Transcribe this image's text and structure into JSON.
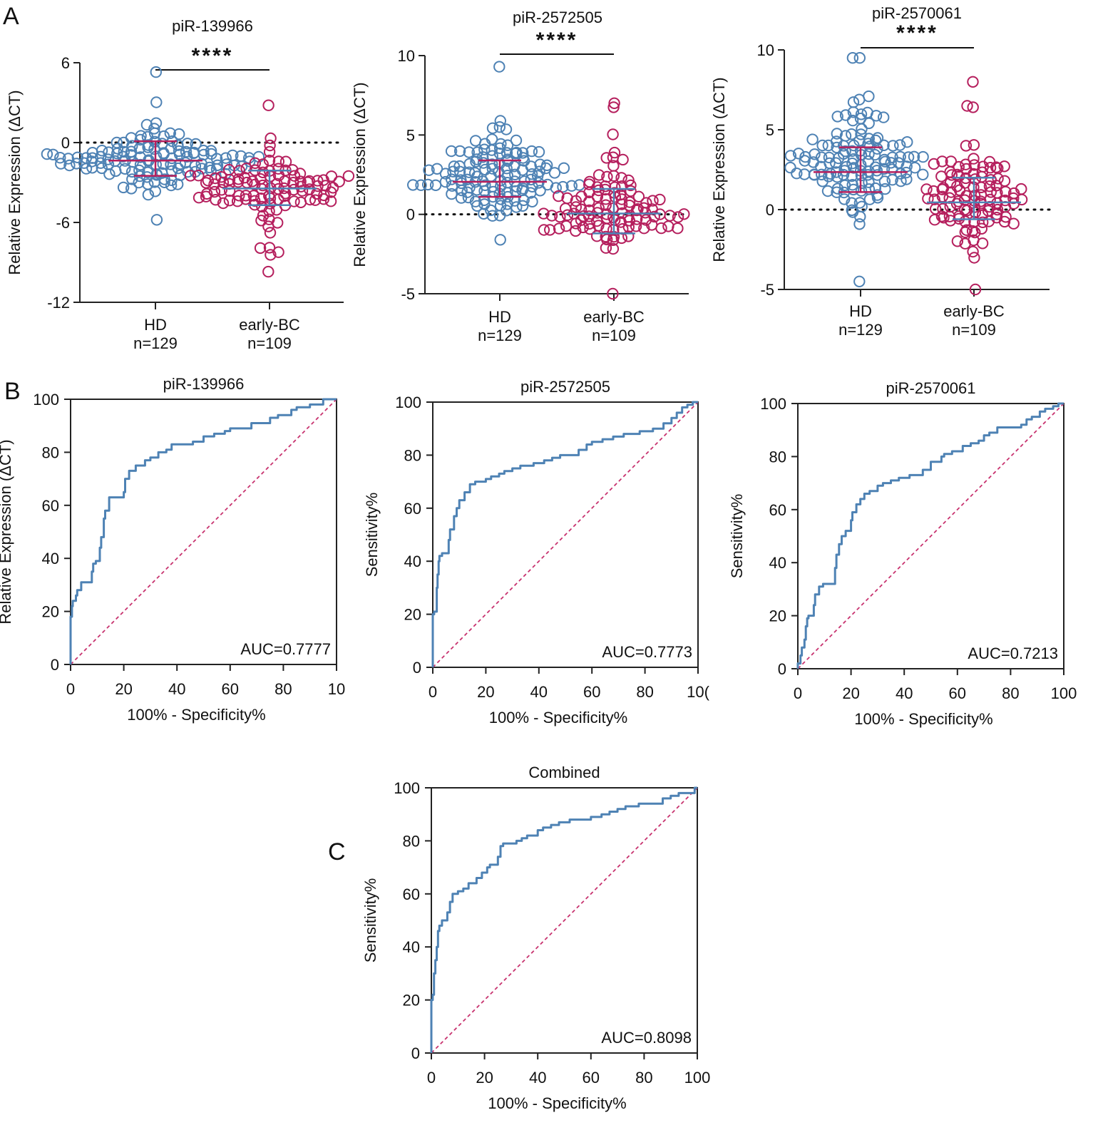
{
  "panel_labels": [
    "A",
    "B",
    "C"
  ],
  "chart_data": [
    {
      "type": "scatter",
      "title": "piR-139966",
      "ylabel": "Relative Expression (ΔCT)",
      "ylim": [
        -12,
        6
      ],
      "yticks": [
        6,
        0,
        -6,
        -12
      ],
      "reference_line": 0,
      "significance": "****",
      "groups": [
        {
          "name": "HD",
          "n_label": "n=129",
          "n": 129,
          "mean": -1.35,
          "sd": 1.2,
          "center": -1.3,
          "min": -5.8,
          "max": 5.3,
          "skew": 0,
          "color": "#4e82b4",
          "bar_color": "#b51f5d",
          "mean_line": -1.35,
          "err_low": -2.5,
          "err_high": 0.1
        },
        {
          "name": "early-BC",
          "n_label": "n=109",
          "n": 109,
          "mean": -3.4,
          "sd": 1.1,
          "center": -3.3,
          "min": -9.7,
          "max": 2.8,
          "skew": -1,
          "color": "#b51f5d",
          "bar_color": "#4e82b4",
          "mean_line": -3.45,
          "err_low": -4.7,
          "err_high": -2.1
        }
      ]
    },
    {
      "type": "scatter",
      "title": "piR-2572505",
      "ylabel": "Relative Expression (ΔCT)",
      "ylim": [
        -5,
        10
      ],
      "yticks": [
        10,
        5,
        0,
        -5
      ],
      "reference_line": 0,
      "significance": "****",
      "groups": [
        {
          "name": "HD",
          "n_label": "n=129",
          "n": 129,
          "mean": 2.1,
          "sd": 1.1,
          "center": 2.1,
          "min": -1.6,
          "max": 9.3,
          "skew": 1,
          "color": "#4e82b4",
          "bar_color": "#b51f5d",
          "mean_line": 2.05,
          "err_low": 1.1,
          "err_high": 3.4
        },
        {
          "name": "early-BC",
          "n_label": "n=109",
          "n": 109,
          "mean": 0.1,
          "sd": 1.3,
          "center": 0.1,
          "min": -5.0,
          "max": 7.0,
          "skew": 1,
          "color": "#b51f5d",
          "bar_color": "#4e82b4",
          "mean_line": 0.05,
          "err_low": -1.2,
          "err_high": 1.6
        }
      ]
    },
    {
      "type": "scatter",
      "title": "piR-2570061",
      "ylabel": "Relative Expression (ΔCT)",
      "ylim": [
        -5,
        10
      ],
      "yticks": [
        10,
        5,
        0,
        -5
      ],
      "reference_line": 0,
      "significance": "****",
      "groups": [
        {
          "name": "HD",
          "n_label": "n=129",
          "n": 129,
          "mean": 2.4,
          "sd": 1.5,
          "center": 2.3,
          "min": -4.5,
          "max": 9.5,
          "skew": 1,
          "color": "#4e82b4",
          "bar_color": "#b51f5d",
          "mean_line": 2.35,
          "err_low": 1.1,
          "err_high": 3.9
        },
        {
          "name": "early-BC",
          "n_label": "n=109",
          "n": 109,
          "mean": 0.5,
          "sd": 1.4,
          "center": 0.4,
          "min": -5.0,
          "max": 8.0,
          "skew": 1,
          "color": "#b51f5d",
          "bar_color": "#4e82b4",
          "mean_line": 0.45,
          "err_low": -0.6,
          "err_high": 2.0
        }
      ]
    },
    {
      "type": "line",
      "subtype": "roc",
      "title": "piR-139966",
      "xlabel": "100% - Specificity%",
      "ylabel": "Relative Expression (ΔCT)",
      "auc_label": "AUC=0.7777",
      "xlim": [
        0,
        100
      ],
      "ylim": [
        0,
        100
      ],
      "xticks": [
        "0",
        "20",
        "40",
        "60",
        "80",
        "10"
      ],
      "yticks": [
        0,
        20,
        40,
        60,
        80,
        100
      ],
      "curve": [
        [
          0,
          0
        ],
        [
          0,
          13
        ],
        [
          0.5,
          18
        ],
        [
          0.8,
          22
        ],
        [
          2,
          24
        ],
        [
          2.5,
          26
        ],
        [
          4,
          28
        ],
        [
          4.5,
          31
        ],
        [
          8,
          31
        ],
        [
          8.5,
          35
        ],
        [
          9.5,
          38
        ],
        [
          11,
          39
        ],
        [
          11.5,
          44
        ],
        [
          12.5,
          48
        ],
        [
          13,
          55
        ],
        [
          14.5,
          58
        ],
        [
          15,
          63
        ],
        [
          20,
          63
        ],
        [
          20.5,
          65
        ],
        [
          22,
          70
        ],
        [
          24.5,
          73
        ],
        [
          25,
          75
        ],
        [
          28,
          75
        ],
        [
          30,
          77
        ],
        [
          33,
          78
        ],
        [
          36,
          80
        ],
        [
          38,
          81
        ],
        [
          40,
          83
        ],
        [
          46,
          83
        ],
        [
          50,
          84
        ],
        [
          54,
          86
        ],
        [
          58,
          87
        ],
        [
          60,
          88
        ],
        [
          65,
          89
        ],
        [
          68,
          89
        ],
        [
          70,
          91
        ],
        [
          75,
          91
        ],
        [
          78,
          93
        ],
        [
          83,
          94
        ],
        [
          85,
          96
        ],
        [
          90,
          97
        ],
        [
          95,
          98
        ],
        [
          98,
          100
        ],
        [
          100,
          100
        ]
      ],
      "curve_color": "#4e82b4",
      "diagonal_color": "#c8336f"
    },
    {
      "type": "line",
      "subtype": "roc",
      "title": "piR-2572505",
      "xlabel": "100% - Specificity%",
      "ylabel": "Sensitivity%",
      "auc_label": "AUC=0.7773",
      "xlim": [
        0,
        100
      ],
      "ylim": [
        0,
        100
      ],
      "xticks": [
        "0",
        "20",
        "40",
        "60",
        "80",
        "10("
      ],
      "yticks": [
        0,
        20,
        40,
        60,
        80,
        100
      ],
      "curve": [
        [
          0,
          0
        ],
        [
          0,
          16
        ],
        [
          0.5,
          20
        ],
        [
          1.5,
          21
        ],
        [
          1.8,
          30
        ],
        [
          2.2,
          35
        ],
        [
          2.5,
          40
        ],
        [
          3.5,
          42
        ],
        [
          6,
          43
        ],
        [
          6.5,
          48
        ],
        [
          8,
          52
        ],
        [
          9,
          57
        ],
        [
          10,
          60
        ],
        [
          12,
          63
        ],
        [
          14,
          66
        ],
        [
          16,
          69
        ],
        [
          20,
          70
        ],
        [
          22,
          71
        ],
        [
          25,
          72
        ],
        [
          27,
          73
        ],
        [
          30,
          74
        ],
        [
          33,
          75
        ],
        [
          38,
          76
        ],
        [
          42,
          77
        ],
        [
          45,
          78
        ],
        [
          48,
          79
        ],
        [
          55,
          80
        ],
        [
          58,
          82
        ],
        [
          60,
          84
        ],
        [
          64,
          85
        ],
        [
          68,
          86
        ],
        [
          72,
          87
        ],
        [
          78,
          88
        ],
        [
          83,
          89
        ],
        [
          87,
          90
        ],
        [
          90,
          92
        ],
        [
          92,
          94
        ],
        [
          94,
          96
        ],
        [
          96,
          98
        ],
        [
          98,
          99
        ],
        [
          100,
          100
        ]
      ],
      "curve_color": "#4e82b4",
      "diagonal_color": "#c8336f"
    },
    {
      "type": "line",
      "subtype": "roc",
      "title": "piR-2570061",
      "xlabel": "100% - Specificity%",
      "ylabel": "Sensitivity%",
      "auc_label": "AUC=0.7213",
      "xlim": [
        0,
        100
      ],
      "ylim": [
        0,
        100
      ],
      "xticks": [
        "0",
        "20",
        "40",
        "60",
        "80",
        "100"
      ],
      "yticks": [
        0,
        20,
        40,
        60,
        80,
        100
      ],
      "curve": [
        [
          0,
          0
        ],
        [
          1,
          2
        ],
        [
          1.5,
          5
        ],
        [
          2.5,
          8
        ],
        [
          3,
          11
        ],
        [
          3.5,
          16
        ],
        [
          4,
          19
        ],
        [
          6,
          20
        ],
        [
          6.5,
          24
        ],
        [
          8,
          28
        ],
        [
          9.5,
          31
        ],
        [
          12,
          32
        ],
        [
          14,
          32
        ],
        [
          14.5,
          38
        ],
        [
          15.5,
          43
        ],
        [
          16.5,
          47
        ],
        [
          18,
          50
        ],
        [
          20,
          52
        ],
        [
          20.5,
          56
        ],
        [
          22,
          59
        ],
        [
          23.5,
          62
        ],
        [
          25,
          64
        ],
        [
          27,
          66
        ],
        [
          30,
          67
        ],
        [
          32,
          69
        ],
        [
          35,
          70
        ],
        [
          38,
          71
        ],
        [
          42,
          72
        ],
        [
          47,
          73
        ],
        [
          50,
          75
        ],
        [
          54,
          78
        ],
        [
          55,
          80
        ],
        [
          58,
          81
        ],
        [
          62,
          82
        ],
        [
          65,
          84
        ],
        [
          68,
          85
        ],
        [
          70,
          86
        ],
        [
          72,
          88
        ],
        [
          75,
          89
        ],
        [
          78,
          91
        ],
        [
          84,
          91
        ],
        [
          86,
          92
        ],
        [
          88,
          94
        ],
        [
          91,
          95
        ],
        [
          93,
          97
        ],
        [
          96,
          98
        ],
        [
          98,
          99
        ],
        [
          100,
          100
        ]
      ],
      "curve_color": "#4e82b4",
      "diagonal_color": "#c8336f"
    },
    {
      "type": "line",
      "subtype": "roc",
      "title": "Combined",
      "xlabel": "100% - Specificity%",
      "ylabel": "Sensitivity%",
      "auc_label": "AUC=0.8098",
      "xlim": [
        0,
        100
      ],
      "ylim": [
        0,
        100
      ],
      "xticks": [
        "0",
        "20",
        "40",
        "60",
        "80",
        "100"
      ],
      "yticks": [
        0,
        20,
        40,
        60,
        80,
        100
      ],
      "curve": [
        [
          0,
          0
        ],
        [
          0,
          15
        ],
        [
          0.5,
          20
        ],
        [
          1,
          22
        ],
        [
          1.5,
          30
        ],
        [
          2,
          35
        ],
        [
          2.5,
          40
        ],
        [
          3,
          46
        ],
        [
          4,
          48
        ],
        [
          6,
          50
        ],
        [
          7,
          53
        ],
        [
          8,
          57
        ],
        [
          10,
          60
        ],
        [
          12,
          61
        ],
        [
          14,
          62
        ],
        [
          17,
          64
        ],
        [
          19,
          66
        ],
        [
          21,
          68
        ],
        [
          22,
          70
        ],
        [
          25,
          71
        ],
        [
          26,
          74
        ],
        [
          27,
          78
        ],
        [
          32,
          79
        ],
        [
          34,
          80
        ],
        [
          36,
          81
        ],
        [
          40,
          82
        ],
        [
          42,
          84
        ],
        [
          45,
          85
        ],
        [
          48,
          86
        ],
        [
          52,
          87
        ],
        [
          56,
          88
        ],
        [
          60,
          88
        ],
        [
          64,
          89
        ],
        [
          67,
          90
        ],
        [
          70,
          91
        ],
        [
          73,
          92
        ],
        [
          78,
          93
        ],
        [
          83,
          94
        ],
        [
          87,
          94
        ],
        [
          90,
          96
        ],
        [
          93,
          97
        ],
        [
          96,
          98
        ],
        [
          99,
          98
        ],
        [
          100,
          100
        ]
      ],
      "curve_color": "#4e82b4",
      "diagonal_color": "#c8336f"
    }
  ]
}
